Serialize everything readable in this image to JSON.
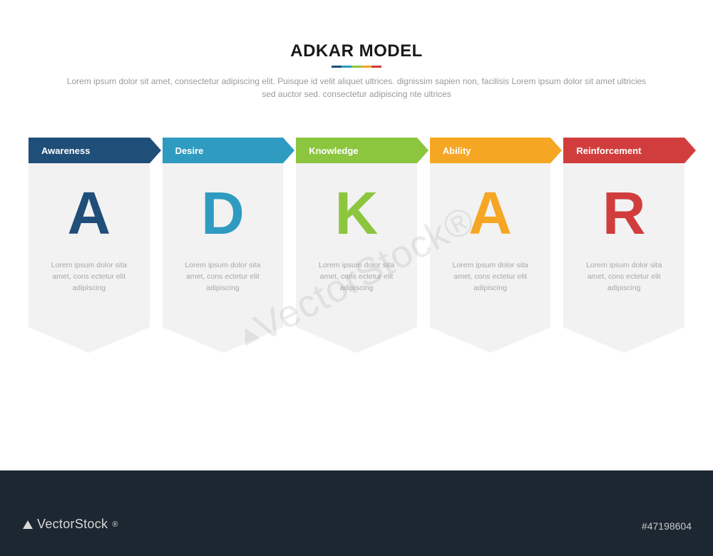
{
  "title": "ADKAR MODEL",
  "subtitle": "Lorem ipsum dolor sit amet, consectetur adipiscing elit. Puisque id velit aliquet ultrices. dignissim sapien non, facilisis Lorem ipsum dolor sit amet ultricies sed auctor sed. consectetur adipiscing nte ultrices",
  "underline_colors": [
    "#1f4e79",
    "#2f9bc1",
    "#8cc63f",
    "#f5a623",
    "#d13d3d"
  ],
  "stages": [
    {
      "label": "Awareness",
      "letter": "A",
      "color": "#1f4e79",
      "desc": "Lorem ipsum dolor sita amet, cons ectetur elit adipiscing"
    },
    {
      "label": "Desire",
      "letter": "D",
      "color": "#2f9bc1",
      "desc": "Lorem ipsum dolor sita amet, cons ectetur elit adipiscing"
    },
    {
      "label": "Knowledge",
      "letter": "K",
      "color": "#8cc63f",
      "desc": "Lorem ipsum dolor sita amet, cons ectetur elit adipiscing"
    },
    {
      "label": "Ability",
      "letter": "A",
      "color": "#f5a623",
      "desc": "Lorem ipsum dolor sita amet, cons ectetur elit adipiscing"
    },
    {
      "label": "Reinforcement",
      "letter": "R",
      "color": "#d13d3d",
      "desc": "Lorem ipsum dolor sita amet, cons ectetur elit adipiscing"
    }
  ],
  "card_background": "#f2f2f3",
  "footer_background": "#1d2731",
  "brand_text": "VectorStock",
  "brand_suffix": "®",
  "image_id_label": "#47198604",
  "watermark_text": "VectorStock®"
}
